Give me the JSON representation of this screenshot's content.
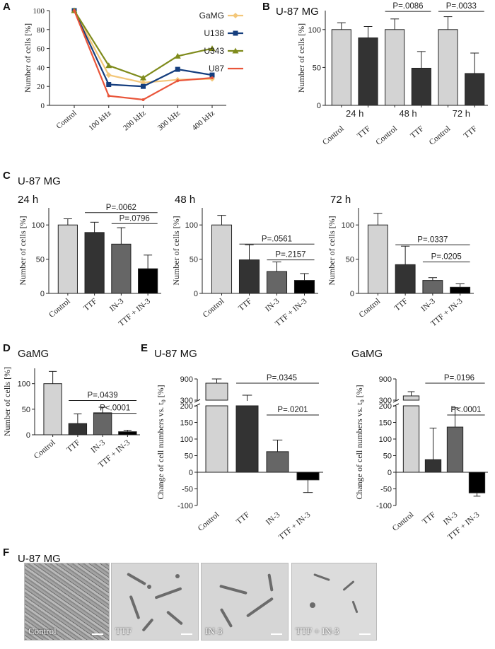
{
  "panel_labels": {
    "A": "A",
    "B": "B",
    "C": "C",
    "D": "D",
    "E": "E",
    "F": "F"
  },
  "cell_lines": {
    "u87": "U-87 MG",
    "gamg": "GaMG"
  },
  "colors": {
    "bar_light": "#d3d3d3",
    "bar_dark": "#333333",
    "bar_mid": "#666666",
    "bar_black": "#000000",
    "gamg": "#f3c77a",
    "u138": "#153e7e",
    "u343": "#7f8b1c",
    "u87": "#e9553a"
  },
  "chart_data": [
    {
      "id": "A",
      "type": "line",
      "title": "",
      "xlabel": "",
      "ylabel": "Number of cells [%]",
      "categories": [
        "Control",
        "100 kHz",
        "200 kHz",
        "300 kHz",
        "400 kHz"
      ],
      "ylim": [
        0,
        100
      ],
      "yticks": [
        0,
        20,
        40,
        60,
        80,
        100
      ],
      "legend": "top-right",
      "series": [
        {
          "name": "GaMG",
          "color": "#f3c77a",
          "marker": "diamond",
          "values": [
            100,
            32,
            24,
            27,
            28
          ]
        },
        {
          "name": "U138",
          "color": "#153e7e",
          "marker": "square",
          "values": [
            100,
            22,
            20,
            38,
            32
          ]
        },
        {
          "name": "U343",
          "color": "#7f8b1c",
          "marker": "triangle",
          "values": [
            100,
            42,
            29,
            52,
            60
          ]
        },
        {
          "name": "U87",
          "color": "#e9553a",
          "marker": "none",
          "values": [
            100,
            10,
            6,
            26,
            29
          ]
        }
      ]
    },
    {
      "id": "B",
      "type": "bar",
      "title": "U-87 MG",
      "ylabel": "Number of cells [%]",
      "ylim": [
        0,
        125
      ],
      "yticks": [
        0,
        50,
        100
      ],
      "categories": [
        "Control",
        "TTF",
        "Control",
        "TTF",
        "Control",
        "TTF"
      ],
      "values": [
        100,
        89,
        100,
        49,
        100,
        42
      ],
      "errors": [
        9,
        15,
        14,
        22,
        17,
        27
      ],
      "bar_colors": [
        "#d3d3d3",
        "#333333",
        "#d3d3d3",
        "#333333",
        "#d3d3d3",
        "#333333"
      ],
      "groups": [
        {
          "label": "24 h",
          "from": 0,
          "to": 1
        },
        {
          "label": "48 h",
          "from": 2,
          "to": 3
        },
        {
          "label": "72 h",
          "from": 4,
          "to": 5
        }
      ],
      "annotations": [
        {
          "text": "P=.0086",
          "from": 2,
          "to": 3,
          "y": 124
        },
        {
          "text": "P=.0033",
          "from": 4,
          "to": 5,
          "y": 124
        }
      ]
    },
    {
      "id": "C24",
      "type": "bar",
      "title": "24 h",
      "ylabel": "Number of cells [%]",
      "ylim": [
        0,
        125
      ],
      "yticks": [
        0,
        50,
        100
      ],
      "categories": [
        "Control",
        "TTF",
        "IN-3",
        "TTF + IN-3"
      ],
      "values": [
        100,
        89,
        72,
        36
      ],
      "errors": [
        9,
        15,
        24,
        20
      ],
      "bar_colors": [
        "#d3d3d3",
        "#333333",
        "#666666",
        "#000000"
      ],
      "annotations": [
        {
          "text": "P=.0062",
          "from": 1,
          "to": 3,
          "y": 118
        },
        {
          "text": "P=.0796",
          "from": 2,
          "to": 3,
          "y": 102
        }
      ]
    },
    {
      "id": "C48",
      "type": "bar",
      "title": "48 h",
      "ylabel": "Number of cells [%]",
      "ylim": [
        0,
        125
      ],
      "yticks": [
        0,
        50,
        100
      ],
      "categories": [
        "Control",
        "TTF",
        "IN-3",
        "TTF + IN-3"
      ],
      "values": [
        100,
        49,
        32,
        19
      ],
      "errors": [
        14,
        22,
        14,
        10
      ],
      "bar_colors": [
        "#d3d3d3",
        "#333333",
        "#666666",
        "#000000"
      ],
      "annotations": [
        {
          "text": "P=.0561",
          "from": 1,
          "to": 3,
          "y": 72
        },
        {
          "text": "P=.2157",
          "from": 2,
          "to": 3,
          "y": 49
        }
      ]
    },
    {
      "id": "C72",
      "type": "bar",
      "title": "72 h",
      "ylabel": "Number of cells [%]",
      "ylim": [
        0,
        125
      ],
      "yticks": [
        0,
        50,
        100
      ],
      "categories": [
        "Control",
        "TTF",
        "IN-3",
        "TTF + IN-3"
      ],
      "values": [
        100,
        42,
        19,
        9
      ],
      "errors": [
        17,
        27,
        4,
        5
      ],
      "bar_colors": [
        "#d3d3d3",
        "#333333",
        "#666666",
        "#000000"
      ],
      "annotations": [
        {
          "text": "P=.0337",
          "from": 1,
          "to": 3,
          "y": 71
        },
        {
          "text": "P=.0205",
          "from": 2,
          "to": 3,
          "y": 46
        }
      ]
    },
    {
      "id": "D",
      "type": "bar",
      "title": "GaMG",
      "ylabel": "Number of cells [%]",
      "ylim": [
        0,
        130
      ],
      "yticks": [
        0,
        50,
        100
      ],
      "categories": [
        "Control",
        "TTF",
        "IN-3",
        "TTF + IN-3"
      ],
      "values": [
        100,
        22,
        43,
        6
      ],
      "errors": [
        24,
        19,
        11,
        3
      ],
      "bar_colors": [
        "#d3d3d3",
        "#333333",
        "#666666",
        "#000000"
      ],
      "annotations": [
        {
          "text": "P=.0439",
          "from": 1,
          "to": 3,
          "y": 67
        },
        {
          "text": "P<.0001",
          "from": 2,
          "to": 3,
          "y": 42
        }
      ]
    },
    {
      "id": "E1",
      "type": "bar",
      "title": "U-87 MG",
      "ylabel": "Change of cell numbers vs. t",
      "ylabel_sub": "0",
      "ylabel_tail": " [%]",
      "scale": "broken",
      "lower_range": [
        -100,
        200
      ],
      "upper_range": [
        300,
        900
      ],
      "yticks": [
        -100,
        -50,
        0,
        50,
        100,
        150,
        200,
        300,
        900
      ],
      "categories": [
        "Control",
        "TTF",
        "IN-3",
        "TTF + IN-3"
      ],
      "values": [
        780,
        270,
        62,
        -23
      ],
      "errors": [
        120,
        170,
        35,
        38
      ],
      "bar_colors": [
        "#d3d3d3",
        "#333333",
        "#666666",
        "#000000"
      ],
      "annotations": [
        {
          "text": "P=.0345",
          "from": 1,
          "to": 3,
          "y": 0
        },
        {
          "text": "P=.0201",
          "from": 2,
          "to": 3,
          "y": 0
        }
      ]
    },
    {
      "id": "E2",
      "type": "bar",
      "title": "GaMG",
      "ylabel": "Change of cell numbers vs. t",
      "ylabel_sub": "0",
      "ylabel_tail": " [%]",
      "scale": "broken",
      "lower_range": [
        -100,
        200
      ],
      "upper_range": [
        300,
        900
      ],
      "yticks": [
        -100,
        -50,
        0,
        50,
        100,
        150,
        200,
        300,
        900
      ],
      "categories": [
        "Control",
        "TTF",
        "IN-3",
        "TTF + IN-3"
      ],
      "values": [
        420,
        38,
        136,
        -62
      ],
      "errors": [
        120,
        95,
        58,
        10
      ],
      "bar_colors": [
        "#d3d3d3",
        "#333333",
        "#666666",
        "#000000"
      ],
      "annotations": [
        {
          "text": "P=.0196",
          "from": 1,
          "to": 3,
          "y": 0
        },
        {
          "text": "P<.0001",
          "from": 2,
          "to": 3,
          "y": 0
        }
      ]
    }
  ],
  "micrographs": [
    "Control",
    "TTF",
    "IN-3",
    "TTF + IN-3"
  ]
}
